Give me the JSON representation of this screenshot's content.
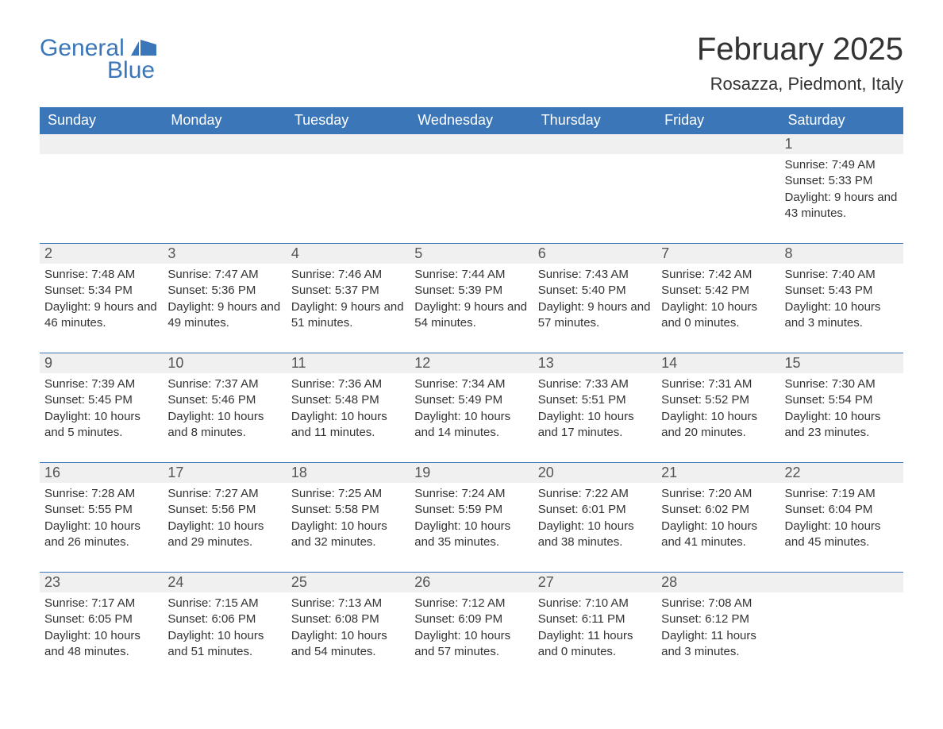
{
  "brand": {
    "name_part1": "General",
    "name_part2": "Blue",
    "color": "#3a76b8"
  },
  "title": "February 2025",
  "location": "Rosazza, Piedmont, Italy",
  "colors": {
    "header_bg": "#3a76b8",
    "header_text": "#ffffff",
    "daynum_bg": "#f0f0f0",
    "row_border": "#3a76b8",
    "body_text": "#333333",
    "page_bg": "#ffffff"
  },
  "typography": {
    "title_fontsize": 40,
    "location_fontsize": 22,
    "weekday_fontsize": 18,
    "daynum_fontsize": 18,
    "body_fontsize": 15,
    "font_family": "Arial"
  },
  "layout": {
    "columns": 7,
    "rows": 5,
    "start_weekday": "Sunday",
    "first_day_column_index": 6
  },
  "weekdays": [
    "Sunday",
    "Monday",
    "Tuesday",
    "Wednesday",
    "Thursday",
    "Friday",
    "Saturday"
  ],
  "days": [
    {
      "n": 1,
      "sunrise": "7:49 AM",
      "sunset": "5:33 PM",
      "daylight": "9 hours and 43 minutes."
    },
    {
      "n": 2,
      "sunrise": "7:48 AM",
      "sunset": "5:34 PM",
      "daylight": "9 hours and 46 minutes."
    },
    {
      "n": 3,
      "sunrise": "7:47 AM",
      "sunset": "5:36 PM",
      "daylight": "9 hours and 49 minutes."
    },
    {
      "n": 4,
      "sunrise": "7:46 AM",
      "sunset": "5:37 PM",
      "daylight": "9 hours and 51 minutes."
    },
    {
      "n": 5,
      "sunrise": "7:44 AM",
      "sunset": "5:39 PM",
      "daylight": "9 hours and 54 minutes."
    },
    {
      "n": 6,
      "sunrise": "7:43 AM",
      "sunset": "5:40 PM",
      "daylight": "9 hours and 57 minutes."
    },
    {
      "n": 7,
      "sunrise": "7:42 AM",
      "sunset": "5:42 PM",
      "daylight": "10 hours and 0 minutes."
    },
    {
      "n": 8,
      "sunrise": "7:40 AM",
      "sunset": "5:43 PM",
      "daylight": "10 hours and 3 minutes."
    },
    {
      "n": 9,
      "sunrise": "7:39 AM",
      "sunset": "5:45 PM",
      "daylight": "10 hours and 5 minutes."
    },
    {
      "n": 10,
      "sunrise": "7:37 AM",
      "sunset": "5:46 PM",
      "daylight": "10 hours and 8 minutes."
    },
    {
      "n": 11,
      "sunrise": "7:36 AM",
      "sunset": "5:48 PM",
      "daylight": "10 hours and 11 minutes."
    },
    {
      "n": 12,
      "sunrise": "7:34 AM",
      "sunset": "5:49 PM",
      "daylight": "10 hours and 14 minutes."
    },
    {
      "n": 13,
      "sunrise": "7:33 AM",
      "sunset": "5:51 PM",
      "daylight": "10 hours and 17 minutes."
    },
    {
      "n": 14,
      "sunrise": "7:31 AM",
      "sunset": "5:52 PM",
      "daylight": "10 hours and 20 minutes."
    },
    {
      "n": 15,
      "sunrise": "7:30 AM",
      "sunset": "5:54 PM",
      "daylight": "10 hours and 23 minutes."
    },
    {
      "n": 16,
      "sunrise": "7:28 AM",
      "sunset": "5:55 PM",
      "daylight": "10 hours and 26 minutes."
    },
    {
      "n": 17,
      "sunrise": "7:27 AM",
      "sunset": "5:56 PM",
      "daylight": "10 hours and 29 minutes."
    },
    {
      "n": 18,
      "sunrise": "7:25 AM",
      "sunset": "5:58 PM",
      "daylight": "10 hours and 32 minutes."
    },
    {
      "n": 19,
      "sunrise": "7:24 AM",
      "sunset": "5:59 PM",
      "daylight": "10 hours and 35 minutes."
    },
    {
      "n": 20,
      "sunrise": "7:22 AM",
      "sunset": "6:01 PM",
      "daylight": "10 hours and 38 minutes."
    },
    {
      "n": 21,
      "sunrise": "7:20 AM",
      "sunset": "6:02 PM",
      "daylight": "10 hours and 41 minutes."
    },
    {
      "n": 22,
      "sunrise": "7:19 AM",
      "sunset": "6:04 PM",
      "daylight": "10 hours and 45 minutes."
    },
    {
      "n": 23,
      "sunrise": "7:17 AM",
      "sunset": "6:05 PM",
      "daylight": "10 hours and 48 minutes."
    },
    {
      "n": 24,
      "sunrise": "7:15 AM",
      "sunset": "6:06 PM",
      "daylight": "10 hours and 51 minutes."
    },
    {
      "n": 25,
      "sunrise": "7:13 AM",
      "sunset": "6:08 PM",
      "daylight": "10 hours and 54 minutes."
    },
    {
      "n": 26,
      "sunrise": "7:12 AM",
      "sunset": "6:09 PM",
      "daylight": "10 hours and 57 minutes."
    },
    {
      "n": 27,
      "sunrise": "7:10 AM",
      "sunset": "6:11 PM",
      "daylight": "11 hours and 0 minutes."
    },
    {
      "n": 28,
      "sunrise": "7:08 AM",
      "sunset": "6:12 PM",
      "daylight": "11 hours and 3 minutes."
    }
  ],
  "labels": {
    "sunrise": "Sunrise:",
    "sunset": "Sunset:",
    "daylight": "Daylight:"
  }
}
